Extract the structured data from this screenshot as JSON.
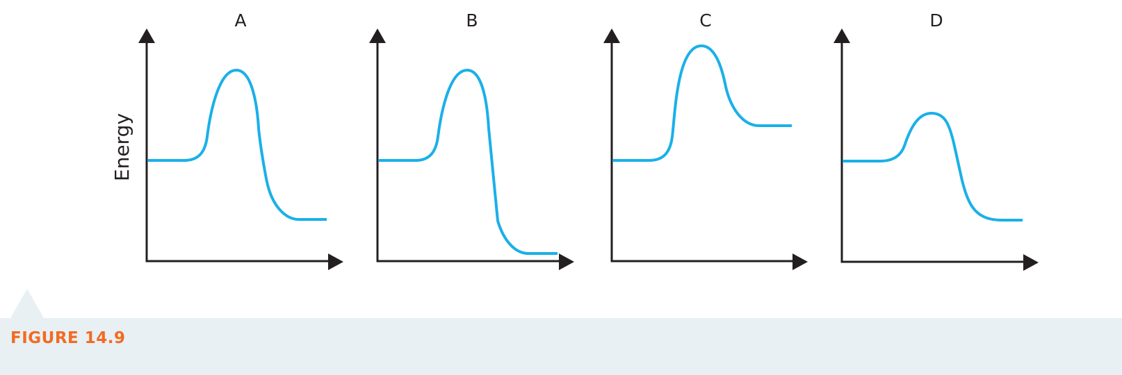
{
  "figure": {
    "caption": "FIGURE 14.9",
    "caption_color": "#f26b21",
    "caption_background": "#e8f0f4"
  },
  "axes": {
    "y_label": "Energy",
    "axis_color": "#231f20"
  },
  "curve_color": "#1ab0e8",
  "panels": [
    {
      "label": "A",
      "reactant_level": "medium",
      "peak": "high",
      "product_level": "low"
    },
    {
      "label": "B",
      "reactant_level": "medium",
      "peak": "high",
      "product_level": "very low"
    },
    {
      "label": "C",
      "reactant_level": "medium",
      "peak": "very high",
      "product_level": "higher than reactants"
    },
    {
      "label": "D",
      "reactant_level": "medium",
      "peak": "low",
      "product_level": "low"
    }
  ]
}
